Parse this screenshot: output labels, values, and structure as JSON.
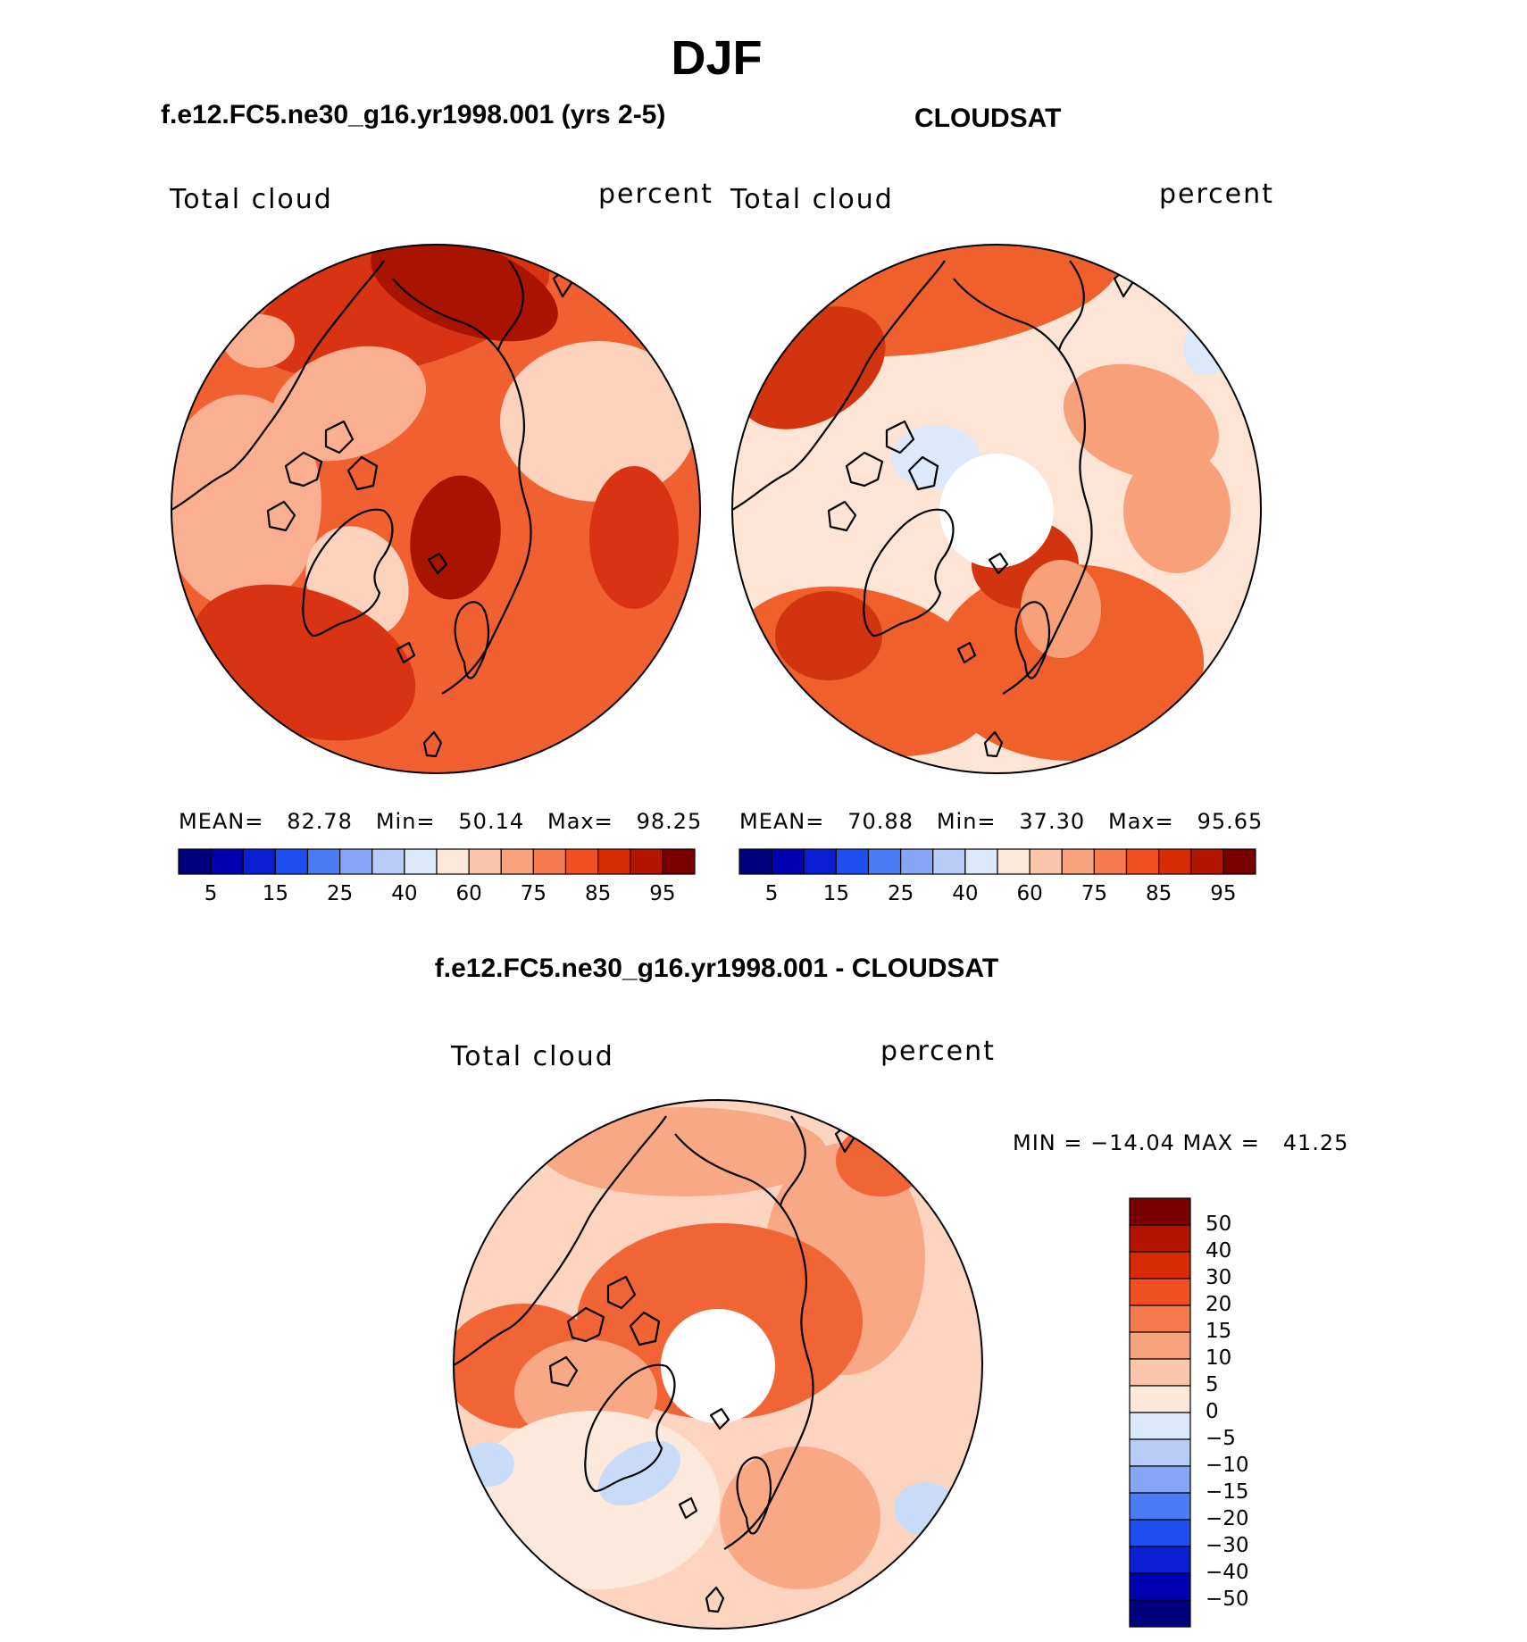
{
  "page": {
    "title": "DJF",
    "model_title": "f.e12.FC5.ne30_g16.yr1998.001 (yrs 2-5)",
    "obs_title": "CLOUDSAT",
    "diff_title": "f.e12.FC5.ne30_g16.yr1998.001 - CLOUDSAT"
  },
  "panels": {
    "model": {
      "var_label": "Total cloud",
      "units_label": "percent",
      "stats_text": "MEAN=   82.78   Min=   50.14   Max=   98.25",
      "mean": 82.78,
      "min": 50.14,
      "max": 98.25
    },
    "obs": {
      "var_label": "Total cloud",
      "units_label": "percent",
      "stats_text": "MEAN=   70.88   Min=   37.30   Max=   95.65",
      "mean": 70.88,
      "min": 37.3,
      "max": 95.65
    },
    "diff": {
      "var_label": "Total cloud",
      "units_label": "percent",
      "stats_text": "MIN = −14.04 MAX =   41.25",
      "min": -14.04,
      "max": 41.25
    }
  },
  "colorbar_abs": {
    "colors": [
      "#00007f",
      "#0000b0",
      "#0a1fd2",
      "#1f4ff0",
      "#4c7cf5",
      "#85a6f7",
      "#b7cdf8",
      "#dce9fb",
      "#fde7d8",
      "#fbc6ab",
      "#f8a27e",
      "#f57a4e",
      "#f24f22",
      "#d72b06",
      "#b31400",
      "#7a0000"
    ],
    "tick_labels": [
      "5",
      "15",
      "25",
      "40",
      "60",
      "75",
      "85",
      "95"
    ]
  },
  "colorbar_diff": {
    "colors": [
      "#7a0000",
      "#b31400",
      "#d72b06",
      "#f24f22",
      "#f57a4e",
      "#f8a27e",
      "#fbc6ab",
      "#fde7d8",
      "#dce9fb",
      "#b7cdf8",
      "#85a6f7",
      "#4c7cf5",
      "#1f4ff0",
      "#0a1fd2",
      "#0000b0",
      "#00007f"
    ],
    "tick_labels": [
      "50",
      "40",
      "30",
      "20",
      "15",
      "10",
      "5",
      "0",
      "−5",
      "−10",
      "−15",
      "−20",
      "−30",
      "−40",
      "−50"
    ]
  },
  "map_palette": {
    "model_base": "#f06030",
    "model_deep": "#d83414",
    "model_dark": "#a81400",
    "model_light": "#fab090",
    "model_pale": "#fcd2bc",
    "obs_base": "#fde4d4",
    "obs_mid": "#f7a07a",
    "obs_strong": "#f0602c",
    "obs_deep": "#d23410",
    "obs_blue": "#dce9fb",
    "diff_base": "#fcd4c0",
    "diff_mid": "#f9a886",
    "diff_strong": "#f06436",
    "diff_pale": "#fde8dc",
    "diff_blue": "#c8dcf8",
    "coast": "#000000"
  }
}
